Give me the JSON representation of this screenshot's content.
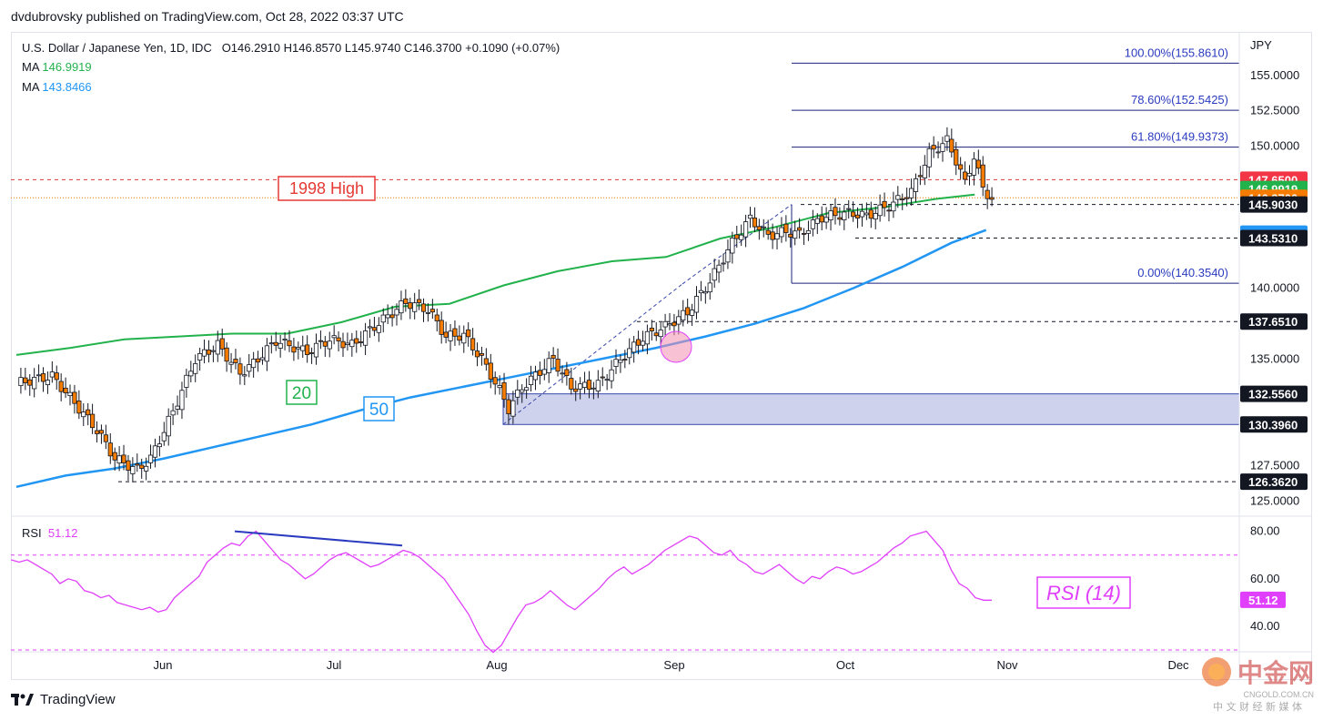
{
  "publisher_line": "dvdubrovsky published on TradingView.com, Oct 28, 2022 03:37 UTC",
  "legend": {
    "symbol": "U.S. Dollar / Japanese Yen, 1D, IDC",
    "ohlc": "O146.2910  H146.8570  L145.9740  C146.3700  +0.1090 (+0.07%)",
    "ma1_label": "MA",
    "ma1_value": "146.9919",
    "ma2_label": "MA",
    "ma2_value": "143.8466",
    "rsi_label": "RSI",
    "rsi_value": "51.12"
  },
  "currency": "JPY",
  "annotations": {
    "high_1998": "1998 High",
    "ma20_tag": "20",
    "ma50_tag": "50",
    "rsi_tag": "RSI (14)"
  },
  "footer": {
    "brand": "TradingView"
  },
  "watermark": {
    "name": "中金网",
    "domain": "CNGOLD.COM.CN",
    "slogan": "中 文 财 经 新 媒 体"
  },
  "colors": {
    "up_candle": "#ffffff",
    "down_candle": "#f57c00",
    "ma20": "#22b24c",
    "ma50": "#2196f3",
    "rsi": "#e040fb",
    "fib": "#1a237e",
    "support_zone": "#c5cae9",
    "high_line": "#e53935"
  },
  "chart_data": {
    "type": "candlestick",
    "y_axis": {
      "ticks": [
        "155.0000",
        "152.5000",
        "150.0000",
        "140.0000",
        "137.5000",
        "135.0000",
        "127.5000",
        "125.0000"
      ],
      "ylim": [
        124.0,
        158.0
      ]
    },
    "x_axis": {
      "ticks": [
        "Jun",
        "Jul",
        "Aug",
        "Sep",
        "Oct",
        "Nov",
        "Dec"
      ]
    },
    "price_labels": [
      {
        "text": "147.6500",
        "value": 147.65,
        "bg": "#f23645",
        "fg": "#ffffff"
      },
      {
        "text": "146.9919",
        "value": 146.9919,
        "bg": "#22b24c",
        "fg": "#ffffff"
      },
      {
        "text": "146.3700",
        "value": 146.37,
        "bg": "#f57c00",
        "fg": "#ffffff"
      },
      {
        "text": "145.9030",
        "value": 145.903,
        "bg": "#131722",
        "fg": "#ffffff"
      },
      {
        "text": "143.8466",
        "value": 143.8466,
        "bg": "#2196f3",
        "fg": "#ffffff"
      },
      {
        "text": "143.5310",
        "value": 143.531,
        "bg": "#131722",
        "fg": "#ffffff"
      },
      {
        "text": "137.6510",
        "value": 137.651,
        "bg": "#131722",
        "fg": "#ffffff"
      },
      {
        "text": "132.5560",
        "value": 132.556,
        "bg": "#131722",
        "fg": "#ffffff"
      },
      {
        "text": "130.3960",
        "value": 130.396,
        "bg": "#131722",
        "fg": "#ffffff"
      },
      {
        "text": "126.3620",
        "value": 126.362,
        "bg": "#131722",
        "fg": "#ffffff"
      }
    ],
    "fib_levels": [
      {
        "label": "100.00%(155.8610)",
        "value": 155.861
      },
      {
        "label": "78.60%(152.5425)",
        "value": 152.5425
      },
      {
        "label": "61.80%(149.9373)",
        "value": 149.9373
      },
      {
        "label": "0.00%(140.3540)",
        "value": 140.354
      }
    ],
    "horizontal_levels": [
      147.65,
      145.903,
      143.531,
      137.651,
      126.362
    ],
    "support_zone": [
      130.396,
      132.556
    ],
    "ma20_path": [
      [
        0,
        135.3
      ],
      [
        10,
        135.8
      ],
      [
        20,
        136.4
      ],
      [
        30,
        136.6
      ],
      [
        40,
        136.8
      ],
      [
        50,
        136.8
      ],
      [
        60,
        137.6
      ],
      [
        70,
        138.7
      ],
      [
        80,
        138.9
      ],
      [
        90,
        140.2
      ],
      [
        100,
        141.2
      ],
      [
        110,
        141.9
      ],
      [
        120,
        142.2
      ],
      [
        130,
        143.5
      ],
      [
        140,
        144.3
      ],
      [
        150,
        145.3
      ],
      [
        160,
        145.7
      ],
      [
        170,
        146.3
      ],
      [
        177,
        146.6
      ]
    ],
    "ma50_path": [
      [
        0,
        126.0
      ],
      [
        10,
        126.8
      ],
      [
        20,
        127.3
      ],
      [
        30,
        128.0
      ],
      [
        40,
        128.8
      ],
      [
        50,
        129.6
      ],
      [
        60,
        130.4
      ],
      [
        70,
        131.4
      ],
      [
        80,
        132.3
      ],
      [
        90,
        133.0
      ],
      [
        100,
        133.7
      ],
      [
        110,
        134.4
      ],
      [
        120,
        135.1
      ],
      [
        130,
        135.8
      ],
      [
        140,
        136.6
      ],
      [
        150,
        137.5
      ],
      [
        160,
        138.6
      ],
      [
        170,
        140.0
      ],
      [
        180,
        141.5
      ],
      [
        190,
        143.2
      ],
      [
        197,
        144.1
      ]
    ],
    "rsi": {
      "ylim": [
        30.0,
        86.0
      ],
      "ticks": [
        "80.00",
        "60.00",
        "40.00"
      ],
      "levels": [
        70,
        30
      ],
      "current": 51.12,
      "values": [
        68,
        67,
        68,
        66,
        64,
        62,
        58,
        60,
        59,
        55,
        54,
        52,
        53,
        50,
        49,
        48,
        47,
        48,
        46,
        47,
        52,
        55,
        58,
        61,
        67,
        70,
        73,
        75,
        74,
        78,
        80,
        76,
        72,
        68,
        66,
        63,
        60,
        62,
        65,
        68,
        70,
        71,
        69,
        67,
        65,
        66,
        68,
        70,
        72,
        71,
        69,
        66,
        63,
        60,
        55,
        50,
        45,
        38,
        32,
        29,
        32,
        38,
        44,
        49,
        50,
        52,
        55,
        52,
        49,
        47,
        50,
        53,
        56,
        60,
        63,
        65,
        62,
        64,
        66,
        69,
        72,
        74,
        76,
        78,
        77,
        74,
        71,
        70,
        72,
        68,
        66,
        63,
        62,
        64,
        66,
        63,
        60,
        58,
        61,
        60,
        63,
        65,
        64,
        62,
        63,
        65,
        67,
        70,
        73,
        75,
        78,
        79,
        80,
        76,
        72,
        64,
        58,
        56,
        52,
        51,
        51
      ]
    }
  }
}
